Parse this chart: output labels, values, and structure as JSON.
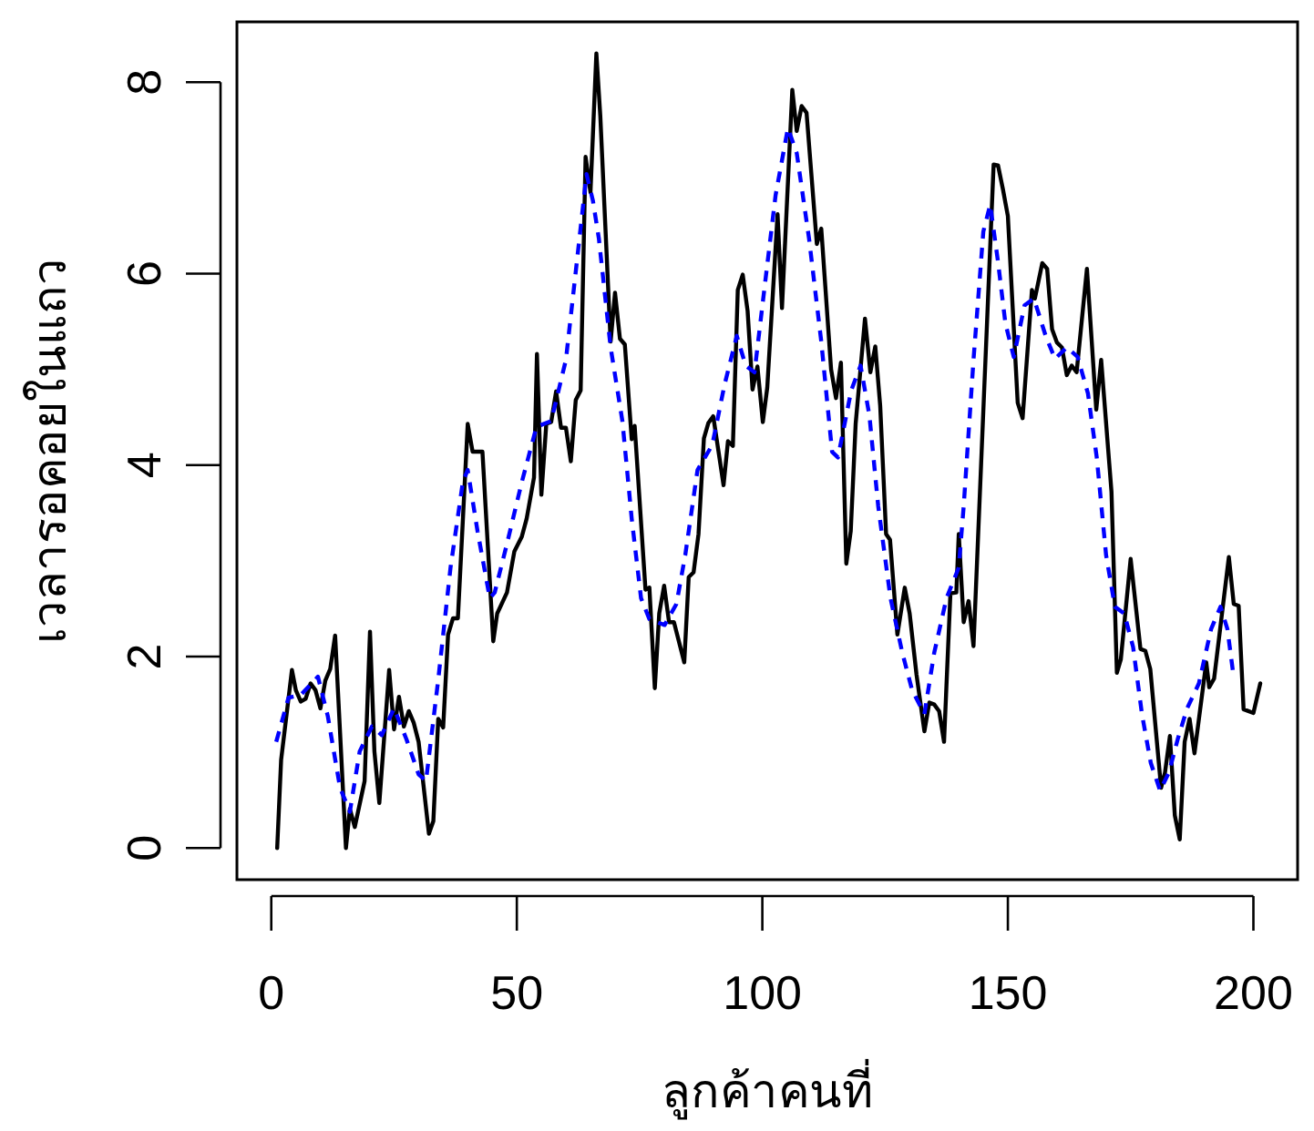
{
  "chart_data": {
    "type": "line",
    "xlabel": "ลูกค้าคนที่",
    "ylabel": "เวลารอคอยในแถว",
    "xlim": [
      -7,
      209
    ],
    "ylim": [
      -0.33,
      8.63
    ],
    "xticks": [
      0,
      50,
      100,
      150,
      200
    ],
    "yticks": [
      0,
      2,
      4,
      6,
      8
    ],
    "grid": false,
    "series": [
      {
        "color": "#000000",
        "line_style": "solid",
        "x": [
          1.2,
          2,
          4.2,
          5,
          6,
          7,
          8,
          9,
          10,
          11,
          12,
          13,
          15.2,
          16,
          17,
          19,
          20.1,
          21,
          22,
          24,
          25,
          26,
          27,
          28,
          29,
          30,
          32.1,
          33,
          34,
          35,
          36,
          37,
          38,
          40,
          41,
          43,
          45.2,
          46,
          48,
          49.5,
          51,
          52,
          53.5,
          54.1,
          55,
          56,
          57,
          58,
          59,
          60,
          61,
          62,
          63,
          64,
          65,
          66.2,
          67,
          69.1,
          70,
          71,
          72,
          73.4,
          74,
          76.2,
          77,
          78.1,
          79,
          80,
          81,
          82,
          84.1,
          85,
          86,
          87,
          88.1,
          89,
          90,
          92.1,
          93,
          94,
          95,
          96,
          97,
          98,
          99,
          100.1,
          101,
          103.1,
          104,
          106.1,
          107,
          108,
          109,
          111.1,
          112,
          114,
          115,
          116,
          117.1,
          118,
          119,
          120.9,
          122,
          123,
          124,
          125.2,
          126,
          127.5,
          129,
          130,
          131.4,
          133,
          134,
          135,
          136,
          137,
          138.3,
          139.5,
          140,
          141,
          142,
          143,
          147.1,
          148,
          149,
          150,
          152,
          153,
          154.9,
          155.5,
          157,
          158,
          159,
          160,
          161,
          162,
          163,
          164,
          166.1,
          168,
          169,
          171.1,
          172.2,
          173,
          175,
          177,
          178,
          179,
          181.2,
          182,
          183,
          184,
          185,
          186,
          187,
          188,
          190.4,
          191,
          192,
          195,
          196,
          197,
          198,
          200,
          201.4
        ],
        "values": [
          0,
          0.92,
          1.86,
          1.65,
          1.53,
          1.56,
          1.72,
          1.65,
          1.46,
          1.75,
          1.87,
          2.22,
          0,
          0.41,
          0.22,
          0.7,
          2.26,
          1.01,
          0.47,
          1.86,
          1.24,
          1.58,
          1.27,
          1.43,
          1.31,
          1.11,
          0.15,
          0.28,
          1.35,
          1.26,
          2.23,
          2.4,
          2.4,
          4.43,
          4.14,
          4.14,
          2.16,
          2.45,
          2.67,
          3.1,
          3.25,
          3.44,
          3.87,
          5.16,
          3.69,
          4.43,
          4.45,
          4.77,
          4.39,
          4.39,
          4.04,
          4.68,
          4.78,
          7.22,
          6.85,
          8.3,
          7.65,
          5.29,
          5.8,
          5.32,
          5.26,
          4.27,
          4.41,
          2.7,
          2.72,
          1.67,
          2.45,
          2.74,
          2.36,
          2.36,
          1.94,
          2.83,
          2.88,
          3.28,
          4.28,
          4.44,
          4.51,
          3.79,
          4.25,
          4.2,
          5.83,
          5.99,
          5.61,
          4.79,
          5.03,
          4.45,
          4.81,
          6.62,
          5.64,
          7.92,
          7.49,
          7.75,
          7.68,
          6.31,
          6.47,
          5.0,
          4.7,
          5.07,
          2.97,
          3.31,
          4.43,
          5.53,
          4.97,
          5.24,
          4.62,
          3.28,
          3.22,
          2.23,
          2.72,
          2.45,
          1.81,
          1.22,
          1.52,
          1.5,
          1.43,
          1.11,
          2.66,
          2.67,
          3.28,
          2.36,
          2.58,
          2.11,
          7.14,
          7.13,
          6.88,
          6.6,
          4.65,
          4.49,
          5.83,
          5.74,
          6.11,
          6.05,
          5.42,
          5.28,
          5.23,
          4.94,
          5.04,
          4.97,
          6.05,
          4.58,
          5.1,
          3.72,
          1.83,
          1.97,
          3.02,
          2.08,
          2.06,
          1.87,
          0.63,
          0.79,
          1.17,
          0.34,
          0.09,
          1.11,
          1.35,
          0.99,
          1.94,
          1.68,
          1.77,
          3.04,
          2.55,
          2.53,
          1.45,
          1.41,
          1.72
        ]
      },
      {
        "color": "#0000ff",
        "line_style": "dashed",
        "x": [
          1,
          3.5,
          6,
          9.5,
          11.5,
          14,
          16,
          18,
          20.5,
          22.5,
          25,
          27.5,
          30,
          31.5,
          34,
          36.5,
          39,
          40,
          42,
          44.5,
          45.5,
          48,
          51,
          54,
          57,
          60,
          62.5,
          64.2,
          65.5,
          66.7,
          69.1,
          71.5,
          73.4,
          75.3,
          77,
          80.1,
          82.5,
          84.3,
          86.8,
          89.8,
          92.3,
          94.8,
          96.6,
          98.4,
          100.9,
          102.7,
          105.2,
          107,
          109.5,
          112,
          114.2,
          115.4,
          118.1,
          120,
          121.8,
          123.6,
          126.1,
          128.5,
          130.5,
          133,
          135,
          137.5,
          140,
          141,
          143,
          145,
          146.4,
          148,
          149.5,
          151.2,
          153.4,
          155.3,
          157.7,
          159.6,
          162,
          164.2,
          166.3,
          168.1,
          170,
          171.8,
          173.7,
          175.5,
          177.3,
          179.1,
          181,
          182.8,
          184.6,
          186.5,
          188.9,
          191.4,
          193.3,
          194.7,
          196
        ],
        "values": [
          1.11,
          1.57,
          1.6,
          1.79,
          1.38,
          0.63,
          0.38,
          1.01,
          1.27,
          1.18,
          1.46,
          1.14,
          0.77,
          0.7,
          1.76,
          2.93,
          3.82,
          3.95,
          3.31,
          2.61,
          2.67,
          3.18,
          3.82,
          4.4,
          4.46,
          5.1,
          6.25,
          7.04,
          6.76,
          6.37,
          5.23,
          4.46,
          3.44,
          2.61,
          2.39,
          2.33,
          2.55,
          3.06,
          3.95,
          4.21,
          4.84,
          5.35,
          5.04,
          4.97,
          6.05,
          6.82,
          7.52,
          7.26,
          6.37,
          5.29,
          4.14,
          4.08,
          4.78,
          5.04,
          4.52,
          3.57,
          2.61,
          2.04,
          1.65,
          1.4,
          2.04,
          2.61,
          2.93,
          3.57,
          5.1,
          6.44,
          6.72,
          6.12,
          5.48,
          5.13,
          5.67,
          5.74,
          5.35,
          5.11,
          5.23,
          5.13,
          4.75,
          4.08,
          3.06,
          2.52,
          2.45,
          2.1,
          1.4,
          0.89,
          0.6,
          0.79,
          1.14,
          1.46,
          1.72,
          2.29,
          2.52,
          2.29,
          1.78
        ]
      }
    ]
  }
}
